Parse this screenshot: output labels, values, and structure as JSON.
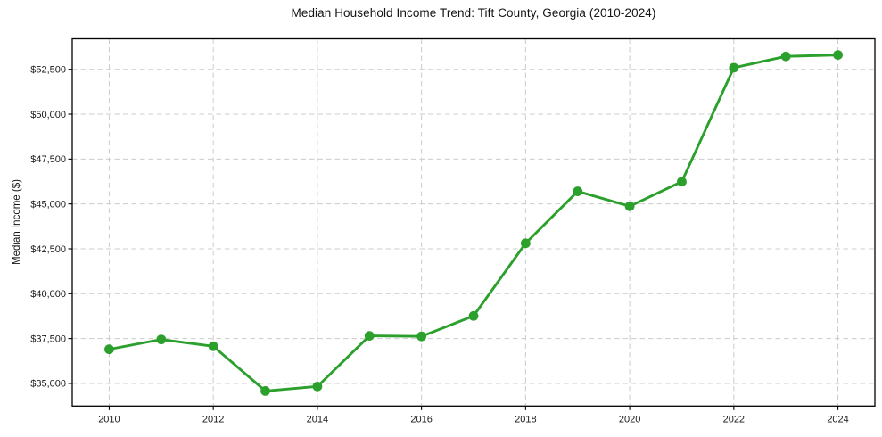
{
  "chart_data": {
    "type": "line",
    "title": "Median Household Income Trend: Tift County, Georgia (2010-2024)",
    "xlabel": "",
    "ylabel": "Median Income ($)",
    "series_name": "Median household income",
    "x": [
      2010,
      2011,
      2012,
      2013,
      2014,
      2015,
      2016,
      2017,
      2018,
      2019,
      2020,
      2021,
      2022,
      2023,
      2024
    ],
    "values": [
      36900,
      37450,
      37070,
      34580,
      34830,
      37650,
      37620,
      38760,
      42810,
      45700,
      44870,
      46240,
      52590,
      53220,
      53300
    ],
    "xlim": [
      2009.29,
      2024.71
    ],
    "ylim": [
      33740,
      54200
    ],
    "xticks": [
      2010,
      2012,
      2014,
      2016,
      2018,
      2020,
      2022,
      2024
    ],
    "xtick_labels": [
      "2010",
      "2012",
      "2014",
      "2016",
      "2018",
      "2020",
      "2022",
      "2024"
    ],
    "ytick_values": [
      35000,
      37500,
      40000,
      42500,
      45000,
      47500,
      50000,
      52500
    ],
    "ytick_labels": [
      "$35,000",
      "$37,500",
      "$40,000",
      "$42,500",
      "$45,000",
      "$47,500",
      "$50,000",
      "$52,500"
    ],
    "grid": "both-dashed",
    "legend": "none",
    "line_color": "#2ca02c",
    "grid_color": "#cccccc",
    "spine_color": "#000000",
    "tick_label_color": "#1a1a1a",
    "marker": "circle"
  }
}
